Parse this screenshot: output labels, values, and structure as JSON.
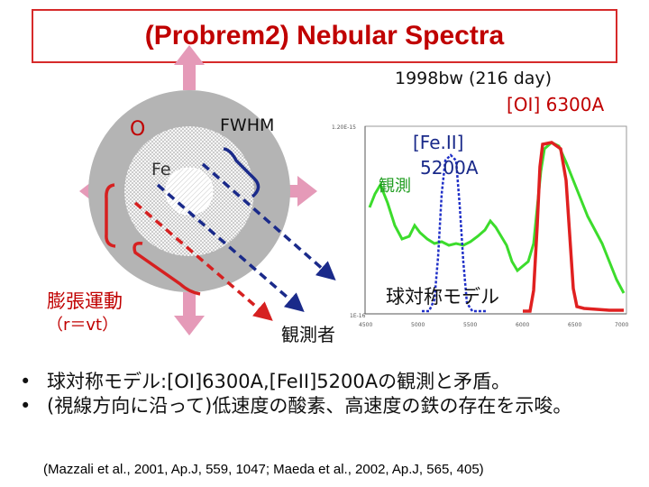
{
  "title": "(Probrem2) Nebular Spectra",
  "diagram": {
    "oxygen_label": "O",
    "fe_label": "Fe",
    "fwhm_label": "FWHM",
    "expansion_label": "膨張運動",
    "expansion_formula": "（r＝vt）",
    "observer_label": "観測者"
  },
  "spectrum": {
    "heading": "1998bw (216 day)",
    "oi_label": "[OI] 6300A",
    "feii_label_line1": "[Fe.II]",
    "feii_label_line2": "5200A",
    "observed_label": "観測",
    "model_label": "球対称モデル",
    "y_tick_top": "1.20E-15",
    "y_tick_bottom": "1E-16",
    "x_ticks": [
      "4500",
      "5000",
      "5500",
      "6000",
      "6500",
      "7000"
    ],
    "colors": {
      "observed": "#3cdc2c",
      "model": "#e02020",
      "fe_model": "#2030c8"
    }
  },
  "bullets": [
    "球対称モデル:[OI]6300A,[FeII]5200Aの観測と矛盾。",
    "(視線方向に沿って)低速度の酸素、高速度の鉄の存在を示唆。"
  ],
  "reference": "(Mazzali et al., 2001, Ap.J, 559, 1047; Maeda et al., 2002, Ap.J, 565, 405)"
}
